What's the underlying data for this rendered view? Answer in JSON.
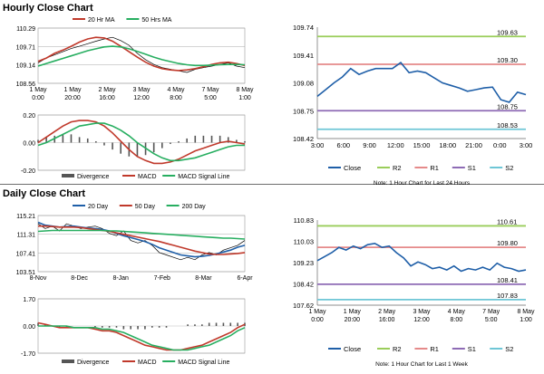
{
  "sections": {
    "hourly_title": "Hourly Close Chart",
    "daily_title": "Daily Close Chart"
  },
  "chart_data": [
    {
      "id": "hourly-price",
      "type": "line",
      "legend": [
        "20 Hr MA",
        "50 Hrs MA"
      ],
      "y_ticks": [
        "110.29",
        "109.71",
        "109.14",
        "108.56"
      ],
      "x_ticks": [
        [
          "1 May",
          "0:00"
        ],
        [
          "1 May",
          "20:00"
        ],
        [
          "2 May",
          "16:00"
        ],
        [
          "3 May",
          "12:00"
        ],
        [
          "4 May",
          "8:00"
        ],
        [
          "7 May",
          "5:00"
        ],
        [
          "8 May",
          "1:00"
        ]
      ],
      "ylim": [
        108.56,
        110.29
      ],
      "series": [
        {
          "name": "Price",
          "color": "#000000",
          "values": [
            109.2,
            109.35,
            109.45,
            109.55,
            109.65,
            109.72,
            109.8,
            109.88,
            109.95,
            110.0,
            109.9,
            109.75,
            109.5,
            109.3,
            109.15,
            109.05,
            109.0,
            108.95,
            108.9,
            109.0,
            109.05,
            109.1,
            109.15,
            109.2,
            109.1,
            109.05
          ]
        },
        {
          "name": "20 Hr MA",
          "color": "#c0392b",
          "values": [
            109.25,
            109.35,
            109.5,
            109.6,
            109.72,
            109.85,
            109.95,
            110.0,
            109.98,
            109.88,
            109.72,
            109.55,
            109.38,
            109.22,
            109.1,
            109.02,
            108.98,
            108.96,
            108.98,
            109.02,
            109.08,
            109.15,
            109.2,
            109.22,
            109.18,
            109.12
          ]
        },
        {
          "name": "50 Hrs MA",
          "color": "#27ae60",
          "values": [
            109.1,
            109.18,
            109.26,
            109.34,
            109.42,
            109.5,
            109.58,
            109.64,
            109.7,
            109.72,
            109.7,
            109.64,
            109.56,
            109.47,
            109.38,
            109.3,
            109.24,
            109.18,
            109.14,
            109.12,
            109.12,
            109.13,
            109.14,
            109.15,
            109.15,
            109.14
          ]
        }
      ]
    },
    {
      "id": "hourly-macd",
      "type": "line",
      "legend": [
        "Divergence",
        "MACD",
        "MACD Signal Line"
      ],
      "y_ticks": [
        "0.20",
        "0.00",
        "-0.20"
      ],
      "ylim": [
        -0.2,
        0.2
      ],
      "series": [
        {
          "name": "MACD",
          "color": "#c0392b",
          "values": [
            0.0,
            0.04,
            0.08,
            0.12,
            0.15,
            0.16,
            0.16,
            0.15,
            0.12,
            0.07,
            0.01,
            -0.05,
            -0.1,
            -0.13,
            -0.15,
            -0.15,
            -0.14,
            -0.12,
            -0.09,
            -0.06,
            -0.04,
            -0.02,
            0.0,
            0.01,
            0.0,
            -0.01
          ]
        },
        {
          "name": "MACD Signal Line",
          "color": "#27ae60",
          "values": [
            -0.02,
            0.0,
            0.03,
            0.06,
            0.09,
            0.12,
            0.13,
            0.14,
            0.14,
            0.12,
            0.09,
            0.05,
            0.0,
            -0.04,
            -0.08,
            -0.11,
            -0.13,
            -0.13,
            -0.12,
            -0.11,
            -0.09,
            -0.07,
            -0.05,
            -0.03,
            -0.02,
            -0.02
          ]
        }
      ],
      "divergence": [
        0.02,
        0.04,
        0.05,
        0.06,
        0.06,
        0.04,
        0.03,
        0.01,
        -0.02,
        -0.05,
        -0.08,
        -0.1,
        -0.1,
        -0.09,
        -0.07,
        -0.04,
        -0.01,
        0.01,
        0.03,
        0.05,
        0.05,
        0.05,
        0.05,
        0.04,
        0.02,
        0.01
      ]
    },
    {
      "id": "hourly-24h",
      "type": "line",
      "note": "Note: 1 Hour Chart for Last 24 Hours",
      "y_ticks": [
        "109.74",
        "109.41",
        "109.08",
        "108.75",
        "108.42"
      ],
      "ylim": [
        108.42,
        109.74
      ],
      "x_ticks": [
        "3:00",
        "6:00",
        "9:00",
        "12:00",
        "15:00",
        "18:00",
        "21:00",
        "0:00",
        "3:00"
      ],
      "levels": [
        {
          "name": "R2",
          "value": 109.63,
          "label": "109.63",
          "color": "#9acd5a"
        },
        {
          "name": "R1",
          "value": 109.3,
          "label": "109.30",
          "color": "#e58a8a"
        },
        {
          "name": "S1",
          "value": 108.75,
          "label": "108.75",
          "color": "#8e6bb5"
        },
        {
          "name": "S2",
          "value": 108.53,
          "label": "108.53",
          "color": "#6ec6d6"
        }
      ],
      "legend": [
        "Close",
        "R2",
        "R1",
        "S1",
        "S2"
      ],
      "series": [
        {
          "name": "Close",
          "color": "#1f5fa8",
          "values": [
            108.92,
            109.0,
            109.08,
            109.15,
            109.25,
            109.18,
            109.22,
            109.25,
            109.25,
            109.25,
            109.32,
            109.2,
            109.22,
            109.2,
            109.14,
            109.08,
            109.05,
            109.02,
            108.98,
            109.0,
            109.02,
            109.03,
            108.88,
            108.85,
            108.97,
            108.94
          ]
        }
      ]
    },
    {
      "id": "daily-price",
      "type": "line",
      "legend": [
        "20 Day",
        "50 Day",
        "200 Day"
      ],
      "y_ticks": [
        "115.21",
        "111.31",
        "107.41",
        "103.51"
      ],
      "ylim": [
        103.51,
        115.21
      ],
      "x_ticks": [
        "8-Nov",
        "8-Dec",
        "8-Jan",
        "7-Feb",
        "8-Mar",
        "6-Apr"
      ],
      "series": [
        {
          "name": "Price",
          "color": "#000000",
          "values": [
            113.5,
            112.5,
            113.0,
            112.0,
            113.5,
            113.0,
            112.5,
            112.8,
            113.0,
            112.5,
            111.5,
            111.0,
            112.0,
            110.0,
            109.5,
            110.0,
            109.0,
            107.5,
            107.0,
            106.5,
            106.0,
            106.5,
            106.0,
            107.0,
            107.5,
            107.0,
            108.0,
            108.5,
            109.0,
            110.0
          ]
        },
        {
          "name": "20 Day",
          "color": "#1f5fa8",
          "values": [
            113.8,
            113.2,
            113.0,
            112.8,
            112.9,
            113.0,
            112.8,
            112.6,
            112.5,
            112.3,
            112.0,
            111.5,
            111.0,
            110.6,
            110.2,
            109.8,
            109.2,
            108.5,
            108.0,
            107.5,
            107.0,
            106.8,
            106.6,
            106.7,
            106.9,
            107.2,
            107.6,
            108.0,
            108.6,
            109.0
          ]
        },
        {
          "name": "50 Day",
          "color": "#c0392b",
          "values": [
            113.0,
            113.0,
            112.9,
            112.8,
            112.8,
            112.8,
            112.7,
            112.5,
            112.3,
            112.1,
            111.9,
            111.6,
            111.3,
            111.0,
            110.7,
            110.4,
            110.1,
            109.8,
            109.4,
            109.0,
            108.6,
            108.2,
            107.8,
            107.5,
            107.2,
            107.1,
            107.1,
            107.2,
            107.3,
            107.5
          ]
        },
        {
          "name": "200 Day",
          "color": "#27ae60",
          "values": [
            111.9,
            112.0,
            112.1,
            112.1,
            112.1,
            112.1,
            112.1,
            112.1,
            112.1,
            112.1,
            112.0,
            112.0,
            111.9,
            111.8,
            111.7,
            111.6,
            111.5,
            111.4,
            111.3,
            111.2,
            111.1,
            111.0,
            110.9,
            110.8,
            110.7,
            110.6,
            110.5,
            110.5,
            110.4,
            110.3
          ]
        }
      ]
    },
    {
      "id": "daily-macd",
      "type": "line",
      "legend": [
        "Divergence",
        "MACD",
        "MACD Signal Line"
      ],
      "y_ticks": [
        "1.70",
        "0.00",
        "-1.70"
      ],
      "ylim": [
        -1.7,
        1.7
      ],
      "series": [
        {
          "name": "MACD",
          "color": "#c0392b",
          "values": [
            0.2,
            0.1,
            0.0,
            -0.1,
            -0.1,
            -0.1,
            -0.1,
            -0.1,
            -0.2,
            -0.3,
            -0.3,
            -0.4,
            -0.6,
            -0.8,
            -1.0,
            -1.2,
            -1.3,
            -1.4,
            -1.5,
            -1.5,
            -1.5,
            -1.4,
            -1.3,
            -1.2,
            -1.0,
            -0.8,
            -0.6,
            -0.4,
            -0.1,
            0.1
          ]
        },
        {
          "name": "MACD Signal Line",
          "color": "#27ae60",
          "values": [
            0.0,
            0.0,
            0.0,
            0.0,
            0.0,
            -0.1,
            -0.1,
            -0.1,
            -0.1,
            -0.2,
            -0.2,
            -0.3,
            -0.4,
            -0.6,
            -0.8,
            -1.0,
            -1.2,
            -1.3,
            -1.4,
            -1.5,
            -1.5,
            -1.5,
            -1.4,
            -1.3,
            -1.2,
            -1.0,
            -0.8,
            -0.6,
            -0.3,
            -0.1
          ]
        }
      ],
      "divergence": [
        0.2,
        0.1,
        0.0,
        -0.1,
        -0.1,
        0.0,
        0.0,
        0.0,
        -0.1,
        -0.1,
        -0.1,
        -0.1,
        -0.2,
        -0.2,
        -0.2,
        -0.2,
        -0.1,
        -0.1,
        -0.1,
        0.0,
        0.0,
        0.1,
        0.1,
        0.1,
        0.2,
        0.2,
        0.2,
        0.2,
        0.2,
        0.2
      ]
    },
    {
      "id": "daily-week",
      "type": "line",
      "note": "Note: 1 Hour Chart for Last 1 Week",
      "y_ticks": [
        "110.83",
        "110.03",
        "109.23",
        "108.42",
        "107.62"
      ],
      "ylim": [
        107.62,
        110.83
      ],
      "x_ticks": [
        [
          "1 May",
          "0:00"
        ],
        [
          "1 May",
          "20:00"
        ],
        [
          "2 May",
          "16:00"
        ],
        [
          "3 May",
          "12:00"
        ],
        [
          "4 May",
          "8:00"
        ],
        [
          "7 May",
          "5:00"
        ],
        [
          "8 May",
          "1:00"
        ]
      ],
      "levels": [
        {
          "name": "R2",
          "value": 110.61,
          "label": "110.61",
          "color": "#9acd5a"
        },
        {
          "name": "R1",
          "value": 109.8,
          "label": "109.80",
          "color": "#e58a8a"
        },
        {
          "name": "S1",
          "value": 108.41,
          "label": "108.41",
          "color": "#8e6bb5"
        },
        {
          "name": "S2",
          "value": 107.83,
          "label": "107.83",
          "color": "#6ec6d6"
        }
      ],
      "legend": [
        "Close",
        "R2",
        "R1",
        "S1",
        "S2"
      ],
      "series": [
        {
          "name": "Close",
          "color": "#1f5fa8",
          "values": [
            109.3,
            109.45,
            109.6,
            109.8,
            109.7,
            109.85,
            109.75,
            109.9,
            109.95,
            109.8,
            109.85,
            109.6,
            109.4,
            109.1,
            109.25,
            109.15,
            109.0,
            109.05,
            108.95,
            109.1,
            108.9,
            109.0,
            108.95,
            109.05,
            108.95,
            109.2,
            109.05,
            109.0,
            108.9,
            108.95
          ]
        }
      ]
    }
  ]
}
